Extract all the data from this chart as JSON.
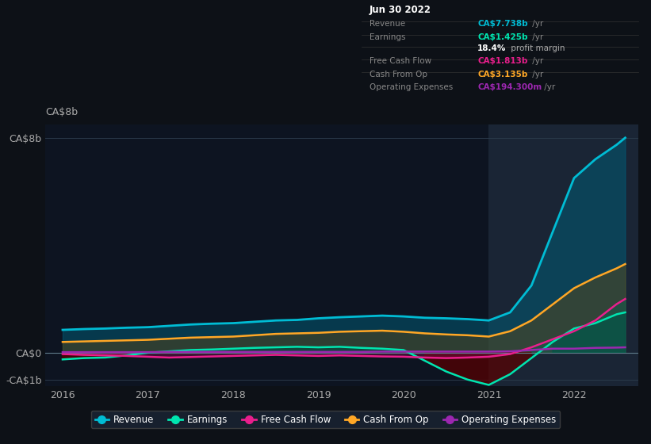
{
  "bg_color": "#0d1117",
  "plot_bg": "#0d1421",
  "grid_color": "#2a3a4a",
  "highlight_bg": "#1a2535",
  "x_years": [
    2016.0,
    2016.25,
    2016.5,
    2016.75,
    2017.0,
    2017.25,
    2017.5,
    2017.75,
    2018.0,
    2018.25,
    2018.5,
    2018.75,
    2019.0,
    2019.25,
    2019.5,
    2019.75,
    2020.0,
    2020.25,
    2020.5,
    2020.75,
    2021.0,
    2021.25,
    2021.5,
    2021.75,
    2022.0,
    2022.25,
    2022.5,
    2022.6
  ],
  "revenue": [
    0.85,
    0.88,
    0.9,
    0.93,
    0.95,
    1.0,
    1.05,
    1.08,
    1.1,
    1.15,
    1.2,
    1.22,
    1.28,
    1.32,
    1.35,
    1.38,
    1.35,
    1.3,
    1.28,
    1.25,
    1.2,
    1.5,
    2.5,
    4.5,
    6.5,
    7.2,
    7.74,
    8.0
  ],
  "earnings": [
    -0.25,
    -0.2,
    -0.18,
    -0.1,
    0.0,
    0.05,
    0.1,
    0.12,
    0.15,
    0.18,
    0.2,
    0.22,
    0.2,
    0.22,
    0.18,
    0.15,
    0.1,
    -0.3,
    -0.7,
    -1.0,
    -1.2,
    -0.8,
    -0.2,
    0.4,
    0.9,
    1.1,
    1.43,
    1.5
  ],
  "free_cash_flow": [
    -0.05,
    -0.08,
    -0.1,
    -0.12,
    -0.15,
    -0.18,
    -0.16,
    -0.14,
    -0.12,
    -0.1,
    -0.08,
    -0.1,
    -0.12,
    -0.1,
    -0.12,
    -0.14,
    -0.15,
    -0.18,
    -0.2,
    -0.18,
    -0.15,
    -0.05,
    0.2,
    0.5,
    0.8,
    1.2,
    1.81,
    2.0
  ],
  "cash_from_op": [
    0.4,
    0.42,
    0.44,
    0.46,
    0.48,
    0.52,
    0.56,
    0.58,
    0.6,
    0.65,
    0.7,
    0.72,
    0.74,
    0.78,
    0.8,
    0.82,
    0.78,
    0.72,
    0.68,
    0.65,
    0.6,
    0.8,
    1.2,
    1.8,
    2.4,
    2.8,
    3.14,
    3.3
  ],
  "op_expenses": [
    0.02,
    0.02,
    0.02,
    0.02,
    0.02,
    0.03,
    0.03,
    0.03,
    0.03,
    0.03,
    0.03,
    0.03,
    0.03,
    0.03,
    0.03,
    0.04,
    0.04,
    0.04,
    0.04,
    0.04,
    0.04,
    0.05,
    0.1,
    0.15,
    0.15,
    0.18,
    0.19,
    0.2
  ],
  "revenue_color": "#00bcd4",
  "earnings_color": "#00e5b0",
  "fcf_color": "#e91e8c",
  "cashop_color": "#ffa726",
  "opex_color": "#9c27b0",
  "revenue_fill": "#005f7a",
  "earnings_fill_pos": "#004d40",
  "earnings_fill_neg": "#5a0000",
  "fcf_fill": "#880e4f",
  "cashop_fill": "#7a4a00",
  "ylim": [
    -1.25,
    8.5
  ],
  "xlim": [
    2015.8,
    2022.75
  ],
  "yticks": [
    -1,
    0,
    8
  ],
  "ytick_labels": [
    "-CA$1b",
    "CA$0",
    "CA$8b"
  ],
  "xtick_labels": [
    "2016",
    "2017",
    "2018",
    "2019",
    "2020",
    "2021",
    "2022"
  ],
  "xtick_positions": [
    2016,
    2017,
    2018,
    2019,
    2020,
    2021,
    2022
  ],
  "highlight_x_start": 2021.0,
  "tooltip_title": "Jun 30 2022",
  "tooltip_rows": [
    {
      "label": "Revenue",
      "value": "CA$7.738b",
      "suffix": " /yr",
      "color": "#00bcd4",
      "is_margin": false
    },
    {
      "label": "Earnings",
      "value": "CA$1.425b",
      "suffix": " /yr",
      "color": "#00e5b0",
      "is_margin": false
    },
    {
      "label": "",
      "value": "18.4%",
      "suffix": " profit margin",
      "color": "#ffffff",
      "is_margin": true
    },
    {
      "label": "Free Cash Flow",
      "value": "CA$1.813b",
      "suffix": " /yr",
      "color": "#e91e8c",
      "is_margin": false
    },
    {
      "label": "Cash From Op",
      "value": "CA$3.135b",
      "suffix": " /yr",
      "color": "#ffa726",
      "is_margin": false
    },
    {
      "label": "Operating Expenses",
      "value": "CA$194.300m",
      "suffix": " /yr",
      "color": "#9c27b0",
      "is_margin": false
    }
  ],
  "legend_entries": [
    {
      "label": "Revenue",
      "color": "#00bcd4"
    },
    {
      "label": "Earnings",
      "color": "#00e5b0"
    },
    {
      "label": "Free Cash Flow",
      "color": "#e91e8c"
    },
    {
      "label": "Cash From Op",
      "color": "#ffa726"
    },
    {
      "label": "Operating Expenses",
      "color": "#9c27b0"
    }
  ]
}
